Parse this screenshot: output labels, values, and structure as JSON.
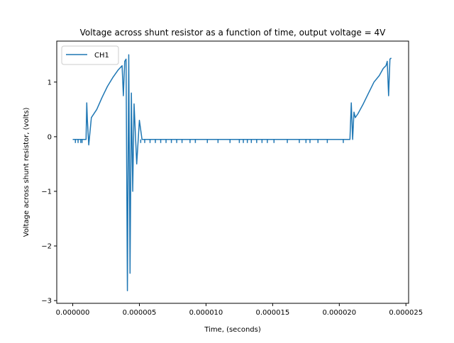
{
  "chart_data": {
    "type": "line",
    "title": "Voltage across shunt resistor as a function of time, output voltage = 4V",
    "xlabel": "Time, (seconds)",
    "ylabel": "Voltage across shunt resistor, (volts)",
    "xlim": [
      -1.2e-06,
      2.52e-05
    ],
    "ylim": [
      -3.05,
      1.75
    ],
    "xticks": [
      0,
      5e-06,
      1e-05,
      1.5e-05,
      2e-05,
      2.5e-05
    ],
    "xtick_labels": [
      "0.000000",
      "0.000005",
      "0.000010",
      "0.000015",
      "0.000020",
      "0.000025"
    ],
    "yticks": [
      -3,
      -2,
      -1,
      0,
      1
    ],
    "ytick_labels": [
      "−3",
      "−2",
      "−1",
      "0",
      "1"
    ],
    "grid": false,
    "legend_position": "top-left",
    "series": [
      {
        "name": "CH1",
        "color": "#1f77b4",
        "x": [
          0.0,
          9e-07,
          1e-06,
          1.05e-06,
          1.1e-06,
          1.2e-06,
          1.4e-06,
          1.8e-06,
          2.2e-06,
          2.6e-06,
          3e-06,
          3.4e-06,
          3.7e-06,
          3.8e-06,
          3.9e-06,
          4e-06,
          4.1e-06,
          4.2e-06,
          4.3e-06,
          4.4e-06,
          4.5e-06,
          4.6e-06,
          4.8e-06,
          5e-06,
          5.2e-06,
          5.6e-06,
          1e-05,
          1.5e-05,
          2e-05,
          2.08e-05,
          2.09e-05,
          2.1e-05,
          2.11e-05,
          2.12e-05,
          2.14e-05,
          2.18e-05,
          2.22e-05,
          2.26e-05,
          2.3e-05,
          2.33e-05,
          2.35e-05,
          2.36e-05,
          2.37e-05,
          2.38e-05,
          2.39e-05
        ],
        "y": [
          -0.05,
          -0.05,
          -0.05,
          0.62,
          0.3,
          -0.15,
          0.35,
          0.5,
          0.72,
          0.92,
          1.08,
          1.22,
          1.3,
          0.75,
          1.38,
          1.42,
          -2.82,
          1.5,
          -2.5,
          0.8,
          -1.0,
          0.6,
          -0.5,
          0.3,
          -0.05,
          -0.05,
          -0.05,
          -0.05,
          -0.05,
          -0.05,
          0.62,
          -0.05,
          0.45,
          0.35,
          0.42,
          0.6,
          0.8,
          1.0,
          1.12,
          1.25,
          1.3,
          1.38,
          0.75,
          1.42,
          1.44
        ]
      }
    ],
    "tick_marks_at_baseline": [
      2e-07,
      4e-07,
      6e-07,
      7e-07,
      5.1e-06,
      5.4e-06,
      5.8e-06,
      6.2e-06,
      6.6e-06,
      7e-06,
      7.4e-06,
      7.8e-06,
      8.2e-06,
      8.8e-06,
      9.2e-06,
      1.01e-05,
      1.09e-05,
      1.18e-05,
      1.25e-05,
      1.28e-05,
      1.31e-05,
      1.34e-05,
      1.38e-05,
      1.42e-05,
      1.46e-05,
      1.51e-05,
      1.61e-05,
      1.7e-05,
      1.75e-05,
      1.78e-05,
      1.84e-05,
      1.91e-05,
      2.03e-05
    ]
  }
}
